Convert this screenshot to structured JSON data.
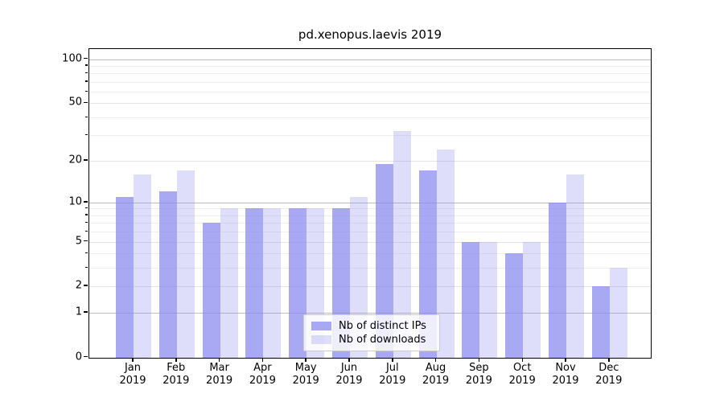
{
  "title": "pd.xenopus.laevis 2019",
  "chart_data": {
    "type": "bar",
    "title": "pd.xenopus.laevis 2019",
    "categories": [
      "Jan 2019",
      "Feb 2019",
      "Mar 2019",
      "Apr 2019",
      "May 2019",
      "Jun 2019",
      "Jul 2019",
      "Aug 2019",
      "Sep 2019",
      "Oct 2019",
      "Nov 2019",
      "Dec 2019"
    ],
    "x_tick_months": [
      "Jan",
      "Feb",
      "Mar",
      "Apr",
      "May",
      "Jun",
      "Jul",
      "Aug",
      "Sep",
      "Oct",
      "Nov",
      "Dec"
    ],
    "x_tick_year": "2019",
    "series": [
      {
        "name": "Nb of distinct IPs",
        "values": [
          11,
          12,
          7,
          9,
          9,
          9,
          19,
          17,
          5,
          4,
          10,
          2
        ],
        "color": "#8888ee",
        "opacity": 0.72,
        "solid_hex": "#a9a9f3"
      },
      {
        "name": "Nb of downloads",
        "values": [
          16,
          17,
          9,
          9,
          9,
          11,
          32,
          24,
          5,
          5,
          16,
          3
        ],
        "color": "#8888ee",
        "opacity": 0.28,
        "solid_hex": "#dedefb"
      }
    ],
    "yscale": "log1p",
    "ylim": [
      0,
      117
    ],
    "y_ticks": [
      0,
      1,
      2,
      5,
      10,
      20,
      50,
      100
    ],
    "y_tick_labels": [
      "0",
      "1",
      "2",
      "5",
      "10",
      "20",
      "50",
      "100"
    ],
    "y_major_grid_at": [
      1,
      10,
      100
    ],
    "y_minor_ticks": [
      3,
      4,
      6,
      7,
      8,
      9,
      30,
      40,
      60,
      70,
      80,
      90
    ],
    "grid": "horizontal",
    "legend_position": "lower-center-inside",
    "xlabel": "",
    "ylabel": ""
  },
  "legend": {
    "items": [
      {
        "label": "Nb of distinct IPs"
      },
      {
        "label": "Nb of downloads"
      }
    ]
  }
}
